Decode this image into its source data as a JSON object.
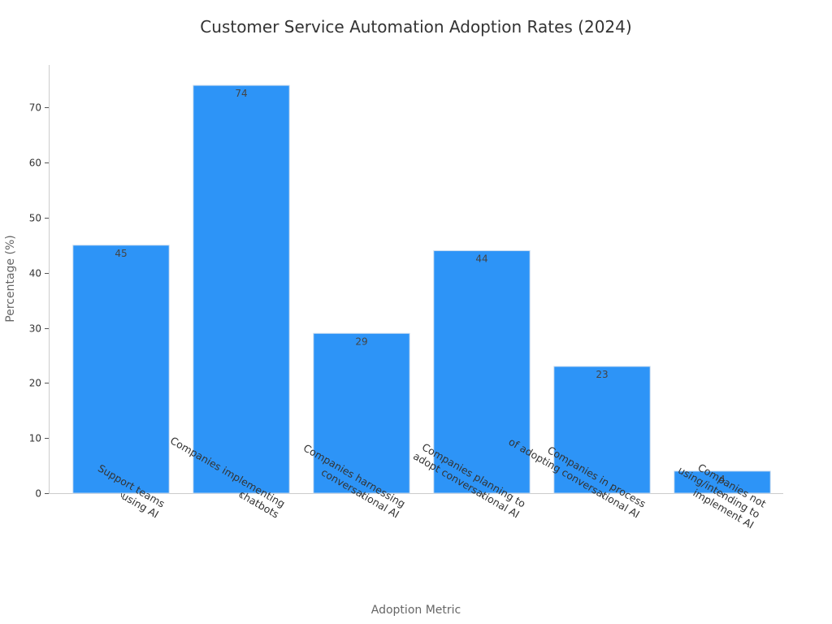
{
  "chart_data": {
    "type": "bar",
    "title": "Customer Service Automation Adoption Rates (2024)",
    "xlabel": "Adoption Metric",
    "ylabel": "Percentage (%)",
    "categories": [
      [
        "Support teams",
        "using AI"
      ],
      [
        "Companies implementing",
        "chatbots"
      ],
      [
        "Companies harnessing",
        "conversational AI"
      ],
      [
        "Companies planning to",
        "adopt conversational AI"
      ],
      [
        "Companies in process",
        "of adopting conversational AI"
      ],
      [
        "Companies not",
        "using/intending to",
        "implement AI"
      ]
    ],
    "values": [
      45,
      74,
      29,
      44,
      23,
      4
    ],
    "data_labels": [
      "45",
      "74",
      "29",
      "44",
      "23",
      "4"
    ],
    "ylim": [
      0,
      77.7
    ],
    "yticks": [
      0,
      10,
      20,
      30,
      40,
      50,
      60,
      70
    ],
    "grid": false,
    "bar_color": "#2d94f7",
    "bar_edge_color": "#c9dcf0"
  }
}
